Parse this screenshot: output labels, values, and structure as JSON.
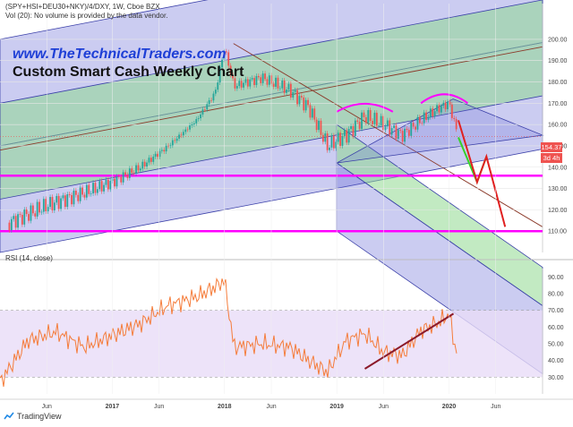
{
  "header": {
    "symbol_line": "(SPY+HSI+DEU30+NKY)/4/DXY, 1W, Cboe BZX",
    "volume_line": "Vol (20): No volume is provided by the data vendor."
  },
  "brand": {
    "url": "www.TheTechnicalTraders.com",
    "title": "Custom Smart Cash Weekly Chart",
    "url_color": "#1e3fd6",
    "title_color": "#111111"
  },
  "badges": {
    "last_price": "154.37",
    "time_left": "3d 4h"
  },
  "rsi_label": "RSI (14, close)",
  "footer": {
    "logo_text": "TradingView",
    "logo_icon": "tradingview-icon"
  },
  "colors": {
    "up": "#26a69a",
    "down": "#ef5350",
    "magenta": "#ff00ff",
    "blue_channel": "#6a6ed6",
    "green_channel": "#8fd88f",
    "rsi_line": "#f57c3a",
    "rsi_band": "#e9dcf8"
  },
  "chart_data": [
    {
      "type": "candlestick",
      "title": "",
      "xlabel": "",
      "ylabel": "",
      "x_ticks": [
        "Jun",
        "2017",
        "Jun",
        "2018",
        "Jun",
        "2019",
        "Jun",
        "2020",
        "Jun"
      ],
      "y_ticks": [
        110.0,
        120.0,
        130.0,
        140.0,
        150.0,
        160.0,
        170.0,
        180.0,
        190.0,
        200.0
      ],
      "ylim": [
        100,
        205
      ],
      "last_value": 154.37,
      "approx_close_path": [
        [
          "2016-02",
          114
        ],
        [
          "2016-06",
          122
        ],
        [
          "2016-10",
          128
        ],
        [
          "2017-01",
          133
        ],
        [
          "2017-04",
          140
        ],
        [
          "2017-07",
          150
        ],
        [
          "2017-10",
          162
        ],
        [
          "2017-12",
          175
        ],
        [
          "2018-01",
          196
        ],
        [
          "2018-02",
          178
        ],
        [
          "2018-05",
          182
        ],
        [
          "2018-08",
          176
        ],
        [
          "2018-10",
          168
        ],
        [
          "2018-12",
          150
        ],
        [
          "2019-02",
          155
        ],
        [
          "2019-04",
          164
        ],
        [
          "2019-06",
          160
        ],
        [
          "2019-08",
          155
        ],
        [
          "2019-10",
          162
        ],
        [
          "2019-12",
          168
        ],
        [
          "2020-01",
          170
        ],
        [
          "2020-02",
          154
        ]
      ],
      "horizontal_levels": [
        136,
        110
      ],
      "projection_green": [
        [
          "2020-02",
          154
        ],
        [
          "2020-04",
          133
        ],
        [
          "2020-05",
          145
        ]
      ],
      "projection_red": [
        [
          "2020-02",
          162
        ],
        [
          "2020-04",
          133
        ],
        [
          "2020-05",
          145
        ],
        [
          "2020-07",
          112
        ]
      ]
    },
    {
      "type": "line",
      "title": "",
      "ylabel": "",
      "series": [
        {
          "name": "",
          "x": [
            "2016-01",
            "2016-04",
            "2016-07",
            "2016-10",
            "2017-01",
            "2017-04",
            "2017-07",
            "2017-10",
            "2017-12",
            "2018-01",
            "2018-02",
            "2018-05",
            "2018-08",
            "2018-10",
            "2018-12",
            "2019-02",
            "2019-04",
            "2019-06",
            "2019-08",
            "2019-10",
            "2019-12",
            "2020-01",
            "2020-02"
          ],
          "values": [
            27,
            52,
            57,
            48,
            55,
            62,
            73,
            78,
            84,
            88,
            48,
            50,
            48,
            40,
            33,
            52,
            56,
            45,
            43,
            58,
            63,
            68,
            38
          ]
        }
      ],
      "y_ticks": [
        30.0,
        40.0,
        50.0,
        60.0,
        70.0,
        80.0,
        90.0
      ],
      "ylim": [
        20,
        95
      ],
      "bands": [
        30,
        70
      ]
    }
  ]
}
